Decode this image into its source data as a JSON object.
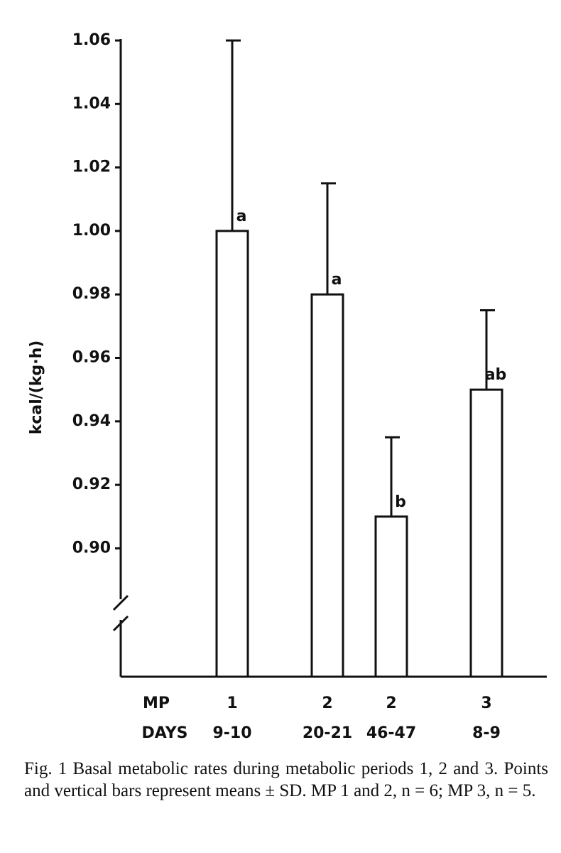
{
  "chart_data": {
    "type": "bar",
    "y_label": "kcal/(kg·h)",
    "group_label": "MP",
    "groups": [
      "1",
      "2",
      "2",
      "3"
    ],
    "category_label": "DAYS",
    "categories": [
      "9-10",
      "20-21",
      "46-47",
      "8-9"
    ],
    "values": [
      1.0,
      0.98,
      0.91,
      0.95
    ],
    "errors": [
      0.06,
      0.035,
      0.025,
      0.025
    ],
    "significance_labels": [
      "a",
      "a",
      "b",
      "ab"
    ],
    "color": "#ffffff",
    "ylim": [
      0.86,
      1.06
    ],
    "yticks": [
      {
        "value": 0.9,
        "label": "0.90"
      },
      0.92,
      0.94,
      0.96,
      0.98,
      {
        "value": 1.0,
        "label": "1.00"
      },
      1.02,
      1.04,
      1.06
    ],
    "axis_break": true,
    "caption": "Fig. 1  Basal metabolic rates during metabolic periods 1, 2 and 3. Points and vertical bars represent means ± SD. MP 1 and 2, n = 6; MP 3, n = 5."
  }
}
